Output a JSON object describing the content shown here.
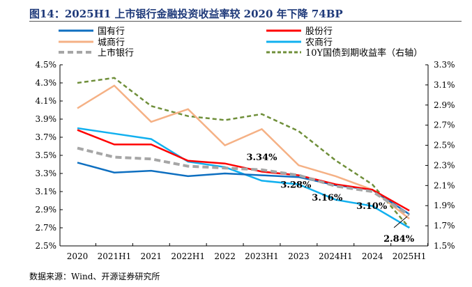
{
  "title": "图14：2025H1 上市银行金融投资收益率较 2020 年下降 74BP",
  "source": "数据来源：Wind、开源证券研究所",
  "chart_data": {
    "type": "line",
    "categories": [
      "2020",
      "2021H1",
      "2021",
      "2022H1",
      "2022",
      "2023H1",
      "2023",
      "2024H1",
      "2024",
      "2025H1"
    ],
    "yleft": {
      "ticks": [
        "4.5%",
        "4.3%",
        "4.1%",
        "3.9%",
        "3.7%",
        "3.5%",
        "3.3%",
        "3.1%",
        "2.9%",
        "2.7%",
        "2.5%"
      ],
      "ylim": [
        2.5,
        4.5
      ]
    },
    "yright": {
      "ticks": [
        "3.3%",
        "3.1%",
        "2.9%",
        "2.7%",
        "2.5%",
        "2.3%",
        "2.1%",
        "1.9%",
        "1.7%",
        "1.5%"
      ],
      "ylim": [
        1.5,
        3.3
      ]
    },
    "legend_placement": "top",
    "series": [
      {
        "name": "国有行",
        "color": "#0e6fc0",
        "dash": false,
        "axis": "left",
        "values": [
          3.42,
          3.31,
          3.33,
          3.27,
          3.3,
          3.28,
          3.26,
          3.17,
          3.12,
          2.85
        ]
      },
      {
        "name": "股份行",
        "color": "#ff0000",
        "dash": false,
        "axis": "left",
        "values": [
          3.78,
          3.62,
          3.62,
          3.44,
          3.41,
          3.32,
          3.28,
          3.18,
          3.12,
          2.89
        ]
      },
      {
        "name": "城商行",
        "color": "#f5b185",
        "dash": false,
        "axis": "left",
        "values": [
          4.02,
          4.27,
          3.87,
          4.01,
          3.61,
          3.79,
          3.39,
          3.27,
          3.12,
          2.8
        ]
      },
      {
        "name": "农商行",
        "color": "#11b0ef",
        "dash": false,
        "axis": "left",
        "values": [
          3.8,
          3.74,
          3.68,
          3.43,
          3.37,
          3.22,
          3.18,
          3.01,
          2.94,
          2.7
        ]
      },
      {
        "name": "上市银行",
        "color": "#a6a6a6",
        "dash": true,
        "axis": "left",
        "values": [
          3.58,
          3.48,
          3.46,
          3.38,
          3.36,
          3.34,
          3.28,
          3.16,
          3.1,
          2.84
        ]
      },
      {
        "name": "10Y国债到期收益率（右轴）",
        "color": "#6f8f3a",
        "dash": true,
        "axis": "right",
        "values": [
          3.12,
          3.17,
          2.89,
          2.79,
          2.75,
          2.81,
          2.64,
          2.35,
          2.11,
          1.68
        ]
      }
    ],
    "annotations": [
      {
        "text": "3.34%",
        "category": "2023H1"
      },
      {
        "text": "3.28%",
        "category": "2023"
      },
      {
        "text": "3.16%",
        "category": "2024H1"
      },
      {
        "text": "3.10%",
        "category": "2024"
      },
      {
        "text": "2.84%",
        "category": "2025H1"
      }
    ]
  }
}
